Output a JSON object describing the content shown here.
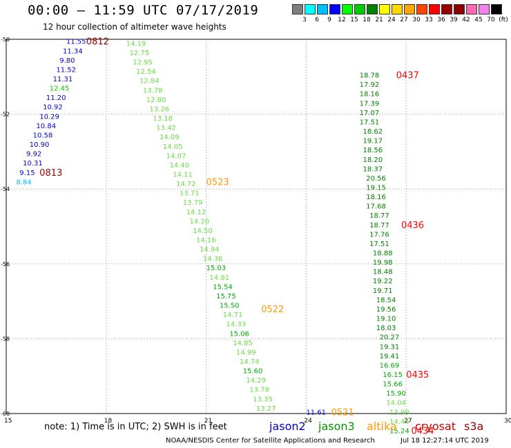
{
  "header": {
    "title": "00:00 – 11:59 UTC 07/17/2019",
    "subtitle": "12 hour collection of altimeter wave heights"
  },
  "legend": {
    "labels": [
      "3",
      "6",
      "9",
      "12",
      "15",
      "18",
      "21",
      "24",
      "27",
      "30",
      "33",
      "36",
      "39",
      "42",
      "45",
      "70",
      "(ft)"
    ],
    "colors": [
      "#808080",
      "#00ffff",
      "#00bfff",
      "#0000ff",
      "#00ff00",
      "#00cc00",
      "#008000",
      "#ffff00",
      "#ffd700",
      "#ffa500",
      "#ff4500",
      "#ff0000",
      "#990000",
      "#8b0000",
      "#ff69b4",
      "#ee82ee",
      "#000000"
    ]
  },
  "footer": {
    "note": "note:  1) Time is in UTC;  2) SWH is in feet",
    "credit": "NOAA/NESDIS Center for Satellite Applications and Research",
    "timestamp": "Jul 18 12:27:14 UTC 2019",
    "satellites": [
      {
        "name": "jason2",
        "color": "#0000cc"
      },
      {
        "name": "jason3",
        "color": "#009900"
      },
      {
        "name": "altika",
        "color": "#ff9900"
      },
      {
        "name": "cryosat",
        "color": "#cc0000"
      },
      {
        "name": "s3a",
        "color": "#990000"
      }
    ]
  },
  "chart_data": {
    "type": "scatter",
    "xlabel": "",
    "ylabel": "",
    "xlim": [
      15,
      30
    ],
    "ylim": [
      -60,
      -50
    ],
    "x_ticks": [
      "15",
      "18",
      "21",
      "24",
      "27",
      "30"
    ],
    "y_ticks": [
      "-50",
      "-52",
      "-54",
      "-56",
      "-58",
      "-60"
    ],
    "grid": "dotted",
    "tracks": [
      {
        "label": "0812",
        "label_color": "#990000",
        "label_at": [
          17.4,
          -50.05
        ],
        "points": [
          {
            "x": 16.8,
            "y": -50.05,
            "v": "11.55",
            "c": "#0000cc"
          },
          {
            "x": 16.7,
            "y": -50.3,
            "v": "11.34",
            "c": "#0000cc"
          },
          {
            "x": 16.6,
            "y": -50.55,
            "v": "9.80",
            "c": "#0000cc"
          },
          {
            "x": 16.5,
            "y": -50.8,
            "v": "11.52",
            "c": "#0000cc"
          },
          {
            "x": 16.4,
            "y": -51.05,
            "v": "11.31",
            "c": "#0000cc"
          },
          {
            "x": 16.3,
            "y": -51.3,
            "v": "12.45",
            "c": "#00cc00"
          },
          {
            "x": 16.2,
            "y": -51.55,
            "v": "11.20",
            "c": "#0000cc"
          },
          {
            "x": 16.1,
            "y": -51.8,
            "v": "10.92",
            "c": "#0000cc"
          },
          {
            "x": 16.0,
            "y": -52.05,
            "v": "10.29",
            "c": "#0000cc"
          },
          {
            "x": 15.9,
            "y": -52.3,
            "v": "10.84",
            "c": "#0000cc"
          },
          {
            "x": 15.8,
            "y": -52.55,
            "v": "10.58",
            "c": "#0000cc"
          },
          {
            "x": 15.7,
            "y": -52.8,
            "v": "10.90",
            "c": "#0000cc"
          },
          {
            "x": 15.6,
            "y": -53.05,
            "v": "9.92",
            "c": "#0000cc"
          },
          {
            "x": 15.5,
            "y": -53.3,
            "v": "10.31",
            "c": "#0000cc"
          },
          {
            "x": 15.4,
            "y": -53.55,
            "v": "9.15",
            "c": "#0000cc"
          },
          {
            "x": 15.3,
            "y": -53.8,
            "v": "8.84",
            "c": "#00bfff"
          }
        ]
      },
      {
        "label": "0813",
        "label_color": "#990000",
        "label_at": [
          16.0,
          -53.55
        ],
        "points": []
      },
      {
        "label": "0523",
        "label_color": "#ff9900",
        "label_at": [
          21.0,
          -53.8
        ],
        "points": [
          {
            "x": 18.6,
            "y": -50.1,
            "v": "14.19",
            "c": "#66dd44"
          },
          {
            "x": 18.7,
            "y": -50.35,
            "v": "12.75",
            "c": "#66dd44"
          },
          {
            "x": 18.8,
            "y": -50.6,
            "v": "12.95",
            "c": "#66dd44"
          },
          {
            "x": 18.9,
            "y": -50.85,
            "v": "12.54",
            "c": "#66dd44"
          },
          {
            "x": 19.0,
            "y": -51.1,
            "v": "12.84",
            "c": "#66dd44"
          },
          {
            "x": 19.1,
            "y": -51.35,
            "v": "13.78",
            "c": "#66dd44"
          },
          {
            "x": 19.2,
            "y": -51.6,
            "v": "12.80",
            "c": "#66dd44"
          },
          {
            "x": 19.3,
            "y": -51.85,
            "v": "13.26",
            "c": "#66dd44"
          },
          {
            "x": 19.4,
            "y": -52.1,
            "v": "13.18",
            "c": "#66dd44"
          },
          {
            "x": 19.5,
            "y": -52.35,
            "v": "13.42",
            "c": "#66dd44"
          },
          {
            "x": 19.6,
            "y": -52.6,
            "v": "14.09",
            "c": "#66dd44"
          },
          {
            "x": 19.7,
            "y": -52.85,
            "v": "14.05",
            "c": "#66dd44"
          },
          {
            "x": 19.8,
            "y": -53.1,
            "v": "14.07",
            "c": "#66dd44"
          },
          {
            "x": 19.9,
            "y": -53.35,
            "v": "14.40",
            "c": "#66dd44"
          },
          {
            "x": 20.0,
            "y": -53.6,
            "v": "14.11",
            "c": "#66dd44"
          },
          {
            "x": 20.1,
            "y": -53.85,
            "v": "14.72",
            "c": "#66dd44"
          },
          {
            "x": 20.2,
            "y": -54.1,
            "v": "13.71",
            "c": "#66dd44"
          },
          {
            "x": 20.3,
            "y": -54.35,
            "v": "13.79",
            "c": "#66dd44"
          },
          {
            "x": 20.4,
            "y": -54.6,
            "v": "14.12",
            "c": "#66dd44"
          },
          {
            "x": 20.5,
            "y": -54.85,
            "v": "14.20",
            "c": "#66dd44"
          },
          {
            "x": 20.6,
            "y": -55.1,
            "v": "14.50",
            "c": "#66dd44"
          },
          {
            "x": 20.7,
            "y": -55.35,
            "v": "14.16",
            "c": "#66dd44"
          },
          {
            "x": 20.8,
            "y": -55.6,
            "v": "14.94",
            "c": "#66dd44"
          },
          {
            "x": 20.9,
            "y": -55.85,
            "v": "14.38",
            "c": "#66dd44"
          }
        ]
      },
      {
        "label": "0522",
        "label_color": "#ff9900",
        "label_at": [
          22.65,
          -57.2
        ],
        "points": [
          {
            "x": 21.0,
            "y": -56.1,
            "v": "15.03",
            "c": "#00aa00"
          },
          {
            "x": 21.1,
            "y": -56.35,
            "v": "14.81",
            "c": "#66dd44"
          },
          {
            "x": 21.2,
            "y": -56.6,
            "v": "15.54",
            "c": "#00aa00"
          },
          {
            "x": 21.3,
            "y": -56.85,
            "v": "15.75",
            "c": "#00aa00"
          },
          {
            "x": 21.4,
            "y": -57.1,
            "v": "15.50",
            "c": "#00aa00"
          },
          {
            "x": 21.5,
            "y": -57.35,
            "v": "14.71",
            "c": "#66dd44"
          },
          {
            "x": 21.6,
            "y": -57.6,
            "v": "14.33",
            "c": "#66dd44"
          },
          {
            "x": 21.7,
            "y": -57.85,
            "v": "15.06",
            "c": "#00aa00"
          },
          {
            "x": 21.8,
            "y": -58.1,
            "v": "14.85",
            "c": "#66dd44"
          },
          {
            "x": 21.9,
            "y": -58.35,
            "v": "14.99",
            "c": "#66dd44"
          },
          {
            "x": 22.0,
            "y": -58.6,
            "v": "14.74",
            "c": "#66dd44"
          },
          {
            "x": 22.1,
            "y": -58.85,
            "v": "15.60",
            "c": "#00aa00"
          },
          {
            "x": 22.2,
            "y": -59.1,
            "v": "14.29",
            "c": "#66dd44"
          },
          {
            "x": 22.3,
            "y": -59.35,
            "v": "13.78",
            "c": "#66dd44"
          },
          {
            "x": 22.4,
            "y": -59.6,
            "v": "13.35",
            "c": "#66dd44"
          },
          {
            "x": 22.5,
            "y": -59.85,
            "v": "13.27",
            "c": "#66dd44"
          }
        ]
      },
      {
        "label": "0521",
        "label_color": "#ff9900",
        "label_at": [
          24.75,
          -59.95
        ],
        "points": [
          {
            "x": 24.0,
            "y": -59.95,
            "v": "11.61",
            "c": "#0000cc"
          }
        ]
      },
      {
        "label": "0437",
        "label_color": "#ff0000",
        "label_at": [
          26.7,
          -50.95
        ],
        "points": [
          {
            "x": 25.6,
            "y": -50.95,
            "v": "18.78",
            "c": "#008000"
          },
          {
            "x": 25.6,
            "y": -51.2,
            "v": "17.92",
            "c": "#008000"
          },
          {
            "x": 25.6,
            "y": -51.45,
            "v": "18.16",
            "c": "#008000"
          },
          {
            "x": 25.6,
            "y": -51.7,
            "v": "17.39",
            "c": "#008000"
          },
          {
            "x": 25.6,
            "y": -51.95,
            "v": "17.07",
            "c": "#008000"
          },
          {
            "x": 25.6,
            "y": -52.2,
            "v": "17.51",
            "c": "#008000"
          },
          {
            "x": 25.7,
            "y": -52.45,
            "v": "18.62",
            "c": "#008000"
          },
          {
            "x": 25.7,
            "y": -52.7,
            "v": "19.17",
            "c": "#008000"
          },
          {
            "x": 25.7,
            "y": -52.95,
            "v": "18.56",
            "c": "#008000"
          },
          {
            "x": 25.7,
            "y": -53.2,
            "v": "18.20",
            "c": "#008000"
          },
          {
            "x": 25.7,
            "y": -53.45,
            "v": "18.37",
            "c": "#008000"
          },
          {
            "x": 25.8,
            "y": -53.7,
            "v": "20.56",
            "c": "#008000"
          },
          {
            "x": 25.8,
            "y": -53.95,
            "v": "19.15",
            "c": "#008000"
          },
          {
            "x": 25.8,
            "y": -54.2,
            "v": "18.16",
            "c": "#008000"
          },
          {
            "x": 25.8,
            "y": -54.45,
            "v": "17.68",
            "c": "#008000"
          },
          {
            "x": 25.9,
            "y": -54.7,
            "v": "18.77",
            "c": "#008000"
          }
        ]
      },
      {
        "label": "0436",
        "label_color": "#ff0000",
        "label_at": [
          26.85,
          -54.95
        ],
        "points": [
          {
            "x": 25.9,
            "y": -54.95,
            "v": "18.77",
            "c": "#008000"
          },
          {
            "x": 25.9,
            "y": -55.2,
            "v": "17.76",
            "c": "#008000"
          },
          {
            "x": 25.9,
            "y": -55.45,
            "v": "17.51",
            "c": "#008000"
          },
          {
            "x": 26.0,
            "y": -55.7,
            "v": "18.88",
            "c": "#008000"
          },
          {
            "x": 26.0,
            "y": -55.95,
            "v": "19.98",
            "c": "#008000"
          },
          {
            "x": 26.0,
            "y": -56.2,
            "v": "18.48",
            "c": "#008000"
          },
          {
            "x": 26.0,
            "y": -56.45,
            "v": "19.22",
            "c": "#008000"
          },
          {
            "x": 26.0,
            "y": -56.7,
            "v": "19.71",
            "c": "#008000"
          },
          {
            "x": 26.1,
            "y": -56.95,
            "v": "18.54",
            "c": "#008000"
          },
          {
            "x": 26.1,
            "y": -57.2,
            "v": "19.56",
            "c": "#008000"
          },
          {
            "x": 26.1,
            "y": -57.45,
            "v": "19.10",
            "c": "#008000"
          },
          {
            "x": 26.1,
            "y": -57.7,
            "v": "18.03",
            "c": "#008000"
          },
          {
            "x": 26.2,
            "y": -57.95,
            "v": "20.27",
            "c": "#008000"
          },
          {
            "x": 26.2,
            "y": -58.2,
            "v": "19.31",
            "c": "#008000"
          },
          {
            "x": 26.2,
            "y": -58.45,
            "v": "19.41",
            "c": "#008000"
          },
          {
            "x": 26.2,
            "y": -58.7,
            "v": "16.69",
            "c": "#00aa00"
          }
        ]
      },
      {
        "label": "0435",
        "label_color": "#ff0000",
        "label_at": [
          27.0,
          -58.95
        ],
        "points": [
          {
            "x": 26.3,
            "y": -58.95,
            "v": "16.15",
            "c": "#00aa00"
          },
          {
            "x": 26.3,
            "y": -59.2,
            "v": "15.66",
            "c": "#00aa00"
          },
          {
            "x": 26.4,
            "y": -59.45,
            "v": "15.90",
            "c": "#00aa00"
          },
          {
            "x": 26.4,
            "y": -59.7,
            "v": "14.04",
            "c": "#66dd44"
          },
          {
            "x": 26.5,
            "y": -59.95,
            "v": "13.99",
            "c": "#66dd44"
          },
          {
            "x": 26.5,
            "y": -60.2,
            "v": "14.45",
            "c": "#66dd44"
          },
          {
            "x": 26.5,
            "y": -60.45,
            "v": "15.24",
            "c": "#00aa00"
          }
        ]
      },
      {
        "label": "0434",
        "label_color": "#ff0000",
        "label_at": [
          27.15,
          -60.45
        ],
        "points": []
      }
    ]
  }
}
